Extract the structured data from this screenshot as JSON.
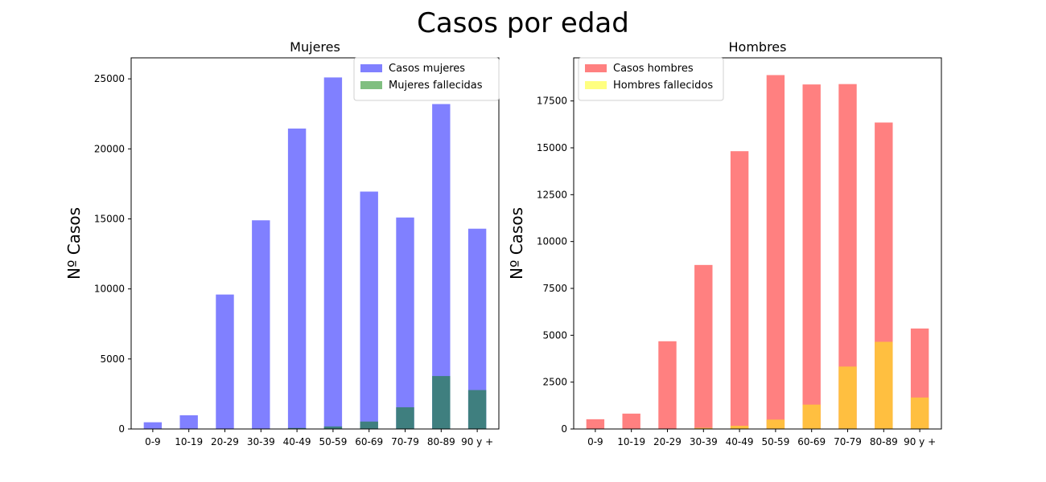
{
  "figure_title": "Casos por edad",
  "chart_data": [
    {
      "type": "bar",
      "title": "Mujeres",
      "xlabel": "",
      "ylabel": "Nº Casos",
      "categories": [
        "0-9",
        "10-19",
        "20-29",
        "30-39",
        "40-49",
        "50-59",
        "60-69",
        "70-79",
        "80-89",
        "90 y +"
      ],
      "ylim": [
        0,
        26500
      ],
      "yticks": [
        0,
        5000,
        10000,
        15000,
        20000,
        25000
      ],
      "ytick_labels": [
        "0",
        "5000",
        "10000",
        "15000",
        "20000",
        "25000"
      ],
      "legend_position": "top-right",
      "series": [
        {
          "name": "Casos mujeres",
          "color": "#8080ff",
          "values": [
            480,
            980,
            9600,
            14900,
            21450,
            25100,
            16950,
            15100,
            23200,
            14300
          ]
        },
        {
          "name": "Mujeres fallecidas",
          "color": "#3f7f7f",
          "legend_color": "#80bf80",
          "values": [
            0,
            0,
            10,
            30,
            70,
            180,
            530,
            1550,
            3780,
            2780
          ]
        }
      ]
    },
    {
      "type": "bar",
      "title": "Hombres",
      "xlabel": "",
      "ylabel": "Nº Casos",
      "categories": [
        "0-9",
        "10-19",
        "20-29",
        "30-39",
        "40-49",
        "50-59",
        "60-69",
        "70-79",
        "80-89",
        "90 y +"
      ],
      "ylim": [
        0,
        19800
      ],
      "yticks": [
        0,
        2500,
        5000,
        7500,
        10000,
        12500,
        15000,
        17500
      ],
      "ytick_labels": [
        "0",
        "2500",
        "5000",
        "7500",
        "10000",
        "12500",
        "15000",
        "17500"
      ],
      "legend_position": "top-left",
      "series": [
        {
          "name": "Casos hombres",
          "color": "#ff8080",
          "values": [
            520,
            820,
            4680,
            8750,
            14820,
            18880,
            18380,
            18400,
            16350,
            5360
          ]
        },
        {
          "name": "Hombres fallecidos",
          "color": "#ffbf40",
          "legend_color": "#ffff80",
          "values": [
            0,
            0,
            20,
            60,
            170,
            500,
            1300,
            3330,
            4650,
            1680
          ]
        }
      ]
    }
  ]
}
